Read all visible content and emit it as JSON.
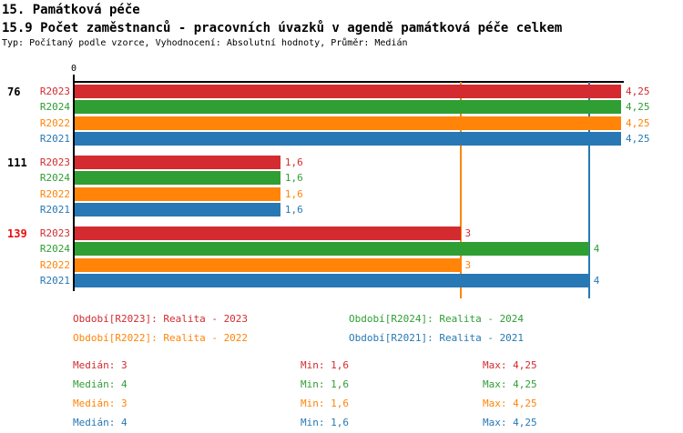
{
  "header": {
    "title_line1": "15. Památková péče",
    "title_line2": "15.9 Počet zaměstnanců - pracovních úvazků v agendě památková péče celkem",
    "subtitle": "Typ: Počítaný podle vzorce, Vyhodnocení: Absolutní hodnoty, Průměr: Medián"
  },
  "colors": {
    "R2023": "#d32b2f",
    "R2024": "#2f9e33",
    "R2022": "#ff8408",
    "R2021": "#2778b4",
    "highlight_group_label": "#e80f0f",
    "normal_group_label": "#000000",
    "axis": "#000000"
  },
  "chart_data": {
    "type": "bar",
    "orientation": "horizontal",
    "title": "15.9 Počet zaměstnanců - pracovních úvazků v agendě památková péče celkem",
    "x_axis": {
      "zero_label": "0",
      "min": 0,
      "max": 4.25,
      "grid": false
    },
    "series_order": [
      "R2023",
      "R2024",
      "R2022",
      "R2021"
    ],
    "groups": [
      {
        "label": "76",
        "highlighted": false,
        "bars": [
          {
            "series": "R2023",
            "value": 4.25,
            "value_label": "4,25"
          },
          {
            "series": "R2024",
            "value": 4.25,
            "value_label": "4,25"
          },
          {
            "series": "R2022",
            "value": 4.25,
            "value_label": "4,25"
          },
          {
            "series": "R2021",
            "value": 4.25,
            "value_label": "4,25"
          }
        ]
      },
      {
        "label": "111",
        "highlighted": false,
        "bars": [
          {
            "series": "R2023",
            "value": 1.6,
            "value_label": "1,6"
          },
          {
            "series": "R2024",
            "value": 1.6,
            "value_label": "1,6"
          },
          {
            "series": "R2022",
            "value": 1.6,
            "value_label": "1,6"
          },
          {
            "series": "R2021",
            "value": 1.6,
            "value_label": "1,6"
          }
        ]
      },
      {
        "label": "139",
        "highlighted": true,
        "bars": [
          {
            "series": "R2023",
            "value": 3,
            "value_label": "3"
          },
          {
            "series": "R2024",
            "value": 4,
            "value_label": "4"
          },
          {
            "series": "R2022",
            "value": 3,
            "value_label": "3"
          },
          {
            "series": "R2021",
            "value": 4,
            "value_label": "4"
          }
        ]
      }
    ],
    "reference_lines": [
      {
        "series": "R2022",
        "value": 3
      },
      {
        "series": "R2021",
        "value": 4
      }
    ],
    "legend_position": "bottom",
    "stats": [
      {
        "series": "R2023",
        "median": 3,
        "min": 1.6,
        "max": 4.25
      },
      {
        "series": "R2024",
        "median": 4,
        "min": 1.6,
        "max": 4.25
      },
      {
        "series": "R2022",
        "median": 3,
        "min": 1.6,
        "max": 4.25
      },
      {
        "series": "R2021",
        "median": 4,
        "min": 1.6,
        "max": 4.25
      }
    ]
  },
  "legend": [
    {
      "series": "R2023",
      "label": "Období[R2023]: Realita - 2023"
    },
    {
      "series": "R2024",
      "label": "Období[R2024]: Realita - 2024"
    },
    {
      "series": "R2022",
      "label": "Období[R2022]: Realita - 2022"
    },
    {
      "series": "R2021",
      "label": "Období[R2021]: Realita - 2021"
    }
  ],
  "stats_labels": [
    {
      "series": "R2023",
      "median": "Medián: 3",
      "min": "Min: 1,6",
      "max": "Max: 4,25"
    },
    {
      "series": "R2024",
      "median": "Medián: 4",
      "min": "Min: 1,6",
      "max": "Max: 4,25"
    },
    {
      "series": "R2022",
      "median": "Medián: 3",
      "min": "Min: 1,6",
      "max": "Max: 4,25"
    },
    {
      "series": "R2021",
      "median": "Medián: 4",
      "min": "Min: 1,6",
      "max": "Max: 4,25"
    }
  ]
}
